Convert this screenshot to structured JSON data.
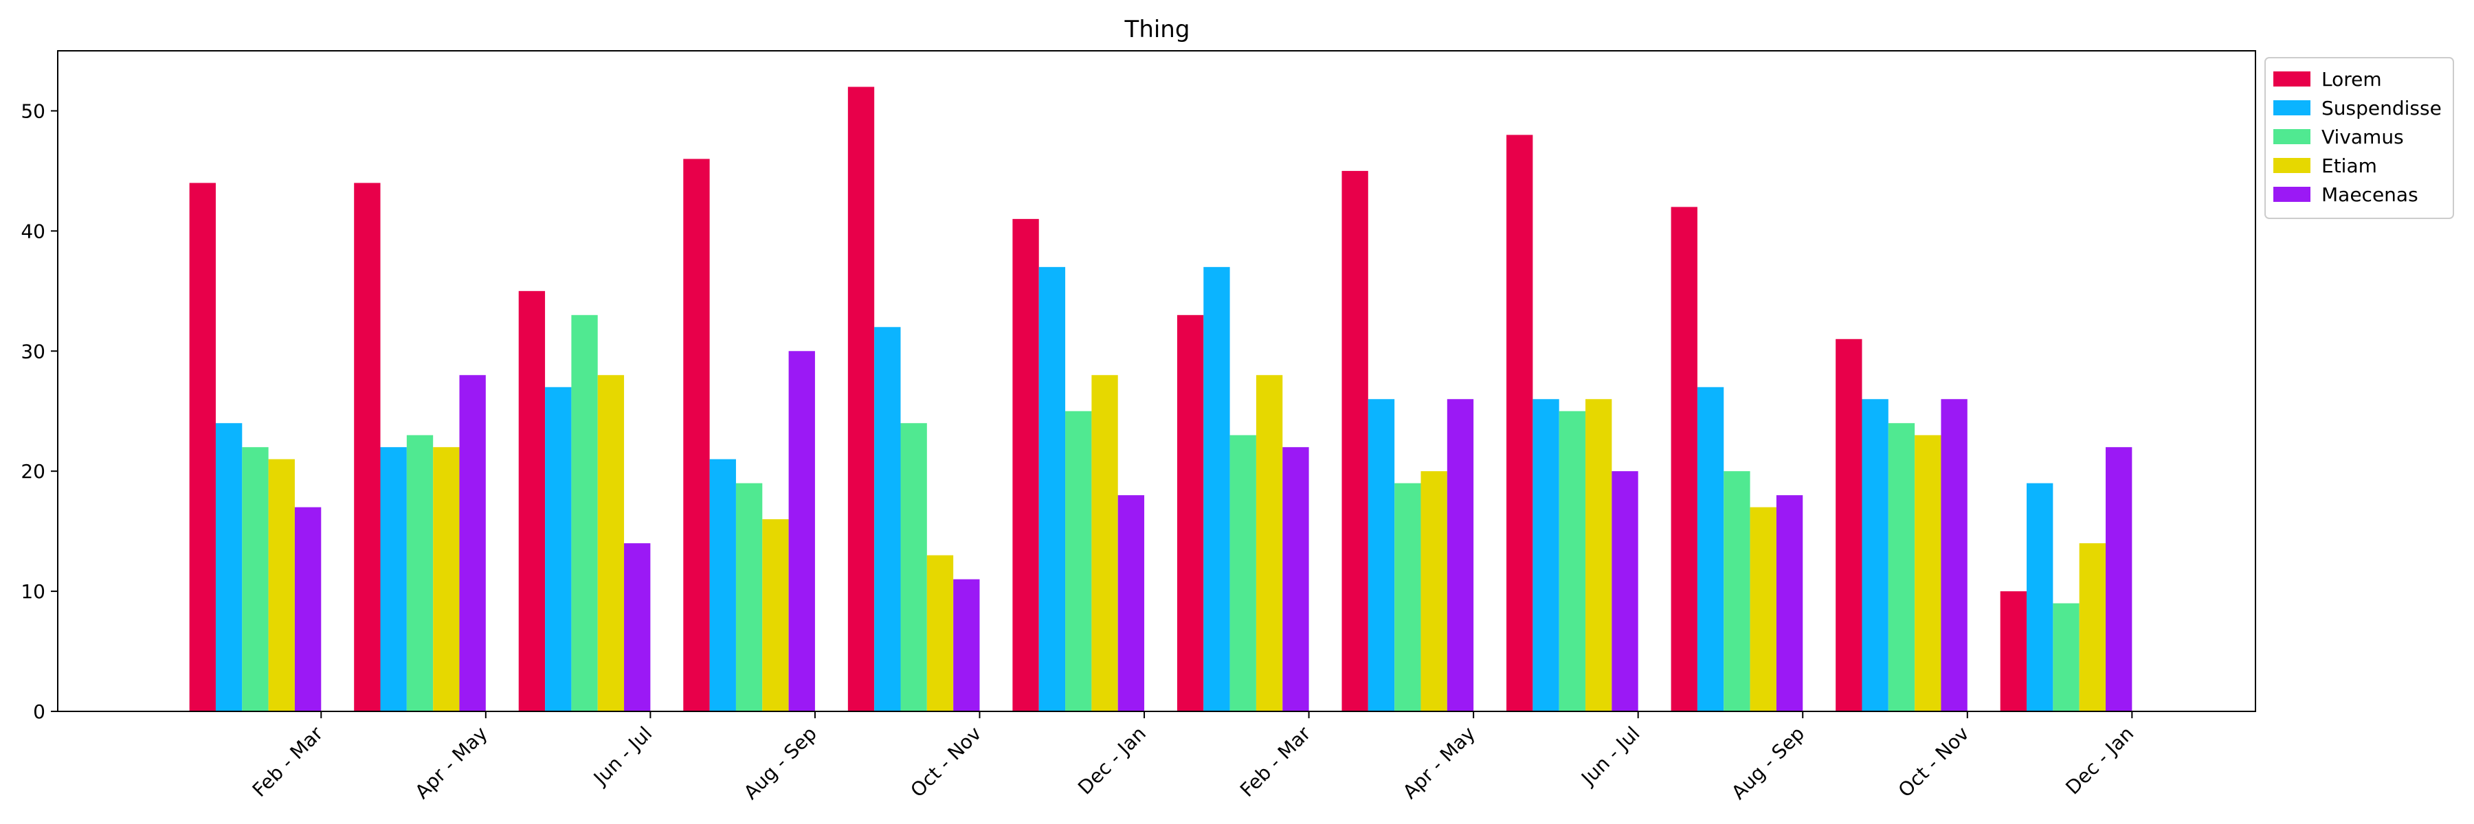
{
  "chart_data": {
    "type": "bar",
    "title": "Thing",
    "xlabel": "",
    "ylabel": "",
    "categories": [
      "Feb - Mar",
      "Apr - May",
      "Jun - Jul",
      "Aug - Sep",
      "Oct - Nov",
      "Dec - Jan",
      "Feb - Mar",
      "Apr - May",
      "Jun - Jul",
      "Aug - Sep",
      "Oct - Nov",
      "Dec - Jan"
    ],
    "ylim": [
      0,
      55
    ],
    "yticks": [
      0,
      10,
      20,
      30,
      40,
      50
    ],
    "grid": false,
    "legend_position": "outside-top-right",
    "series": [
      {
        "name": "Lorem",
        "color": "#e8004a",
        "values": [
          44,
          44,
          35,
          46,
          52,
          41,
          33,
          45,
          48,
          42,
          31,
          10
        ]
      },
      {
        "name": "Suspendisse",
        "color": "#0bb4ff",
        "values": [
          24,
          22,
          27,
          21,
          32,
          37,
          37,
          26,
          26,
          27,
          26,
          19
        ]
      },
      {
        "name": "Vivamus",
        "color": "#50e991",
        "values": [
          22,
          23,
          33,
          19,
          24,
          25,
          23,
          19,
          25,
          20,
          24,
          9
        ]
      },
      {
        "name": "Etiam",
        "color": "#e6d800",
        "values": [
          21,
          22,
          28,
          16,
          13,
          28,
          28,
          20,
          26,
          17,
          23,
          14
        ]
      },
      {
        "name": "Maecenas",
        "color": "#9b19f5",
        "values": [
          17,
          28,
          14,
          30,
          11,
          18,
          22,
          26,
          20,
          18,
          26,
          22
        ]
      }
    ]
  }
}
